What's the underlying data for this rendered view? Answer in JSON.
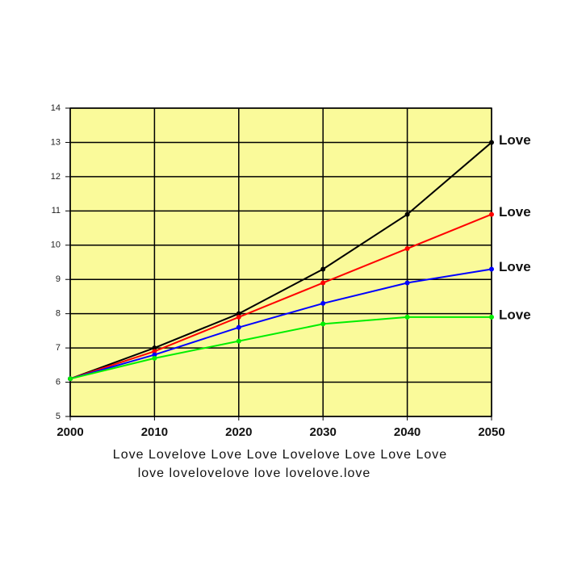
{
  "chart_data": {
    "type": "line",
    "x": [
      2000,
      2010,
      2020,
      2030,
      2040,
      2050
    ],
    "xlim": [
      2000,
      2050
    ],
    "xticks": [
      2000,
      2010,
      2020,
      2030,
      2040,
      2050
    ],
    "ylim": [
      5,
      14
    ],
    "yticks": [
      5,
      6,
      7,
      8,
      9,
      10,
      11,
      12,
      13,
      14
    ],
    "grid": true,
    "background": "#fafa9a",
    "series": [
      {
        "name": "Love",
        "color": "#000000",
        "values": [
          6.1,
          7.0,
          8.0,
          9.3,
          10.9,
          13.0
        ]
      },
      {
        "name": "Love",
        "color": "#ff0000",
        "values": [
          6.1,
          6.9,
          7.9,
          8.9,
          9.9,
          10.9
        ]
      },
      {
        "name": "Love",
        "color": "#0000ff",
        "values": [
          6.1,
          6.8,
          7.6,
          8.3,
          8.9,
          9.3
        ]
      },
      {
        "name": "Love",
        "color": "#00ee00",
        "values": [
          6.1,
          6.7,
          7.2,
          7.7,
          7.9,
          7.9
        ]
      }
    ],
    "annotations": [
      "Love Lovelove Love Love Lovelove Love Love Love",
      "love lovelovelove love lovelove.love"
    ]
  }
}
